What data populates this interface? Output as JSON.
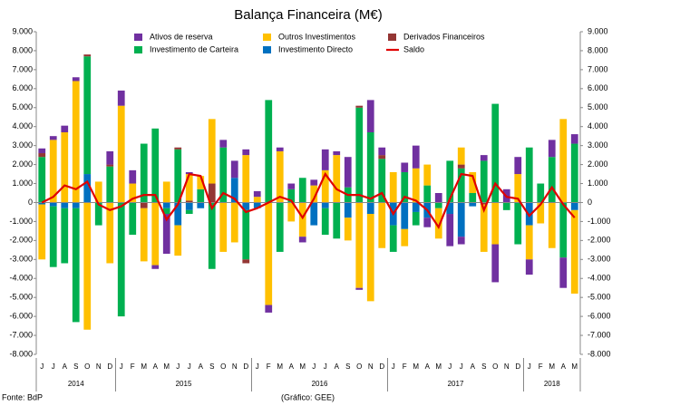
{
  "chart_data": {
    "type": "bar",
    "title": "Balança Financeira (M€)",
    "source": "Fonte: BdP",
    "credit": "(Gráfico: GEE)",
    "categories": [
      "J",
      "J",
      "A",
      "S",
      "O",
      "N",
      "D",
      "J",
      "F",
      "M",
      "A",
      "M",
      "J",
      "J",
      "A",
      "S",
      "O",
      "N",
      "D",
      "J",
      "F",
      "M",
      "A",
      "M",
      "J",
      "J",
      "A",
      "S",
      "O",
      "N",
      "D",
      "J",
      "F",
      "M",
      "A",
      "M",
      "J",
      "J",
      "A",
      "S",
      "O",
      "N",
      "D",
      "J",
      "F",
      "M",
      "A",
      "M"
    ],
    "years": [
      {
        "label": "2014",
        "months": 7
      },
      {
        "label": "2015",
        "months": 12
      },
      {
        "label": "2016",
        "months": 12
      },
      {
        "label": "2017",
        "months": 12
      },
      {
        "label": "2018",
        "months": 5
      }
    ],
    "ylim": [
      -8000,
      9000
    ],
    "yticks": [
      {
        "value": -8000,
        "label": "-8.000"
      },
      {
        "value": -7000,
        "label": "-7.000"
      },
      {
        "value": -6000,
        "label": "-6.000"
      },
      {
        "value": -5000,
        "label": "-5.000"
      },
      {
        "value": -4000,
        "label": "-4.000"
      },
      {
        "value": -3000,
        "label": "-3.000"
      },
      {
        "value": -2000,
        "label": "-2.000"
      },
      {
        "value": -1000,
        "label": "-1.000"
      },
      0,
      {
        "value": 1000,
        "label": "1.000"
      },
      {
        "value": 2000,
        "label": "2.000"
      },
      {
        "value": 3000,
        "label": "3.000"
      },
      {
        "value": 4000,
        "label": "4.000"
      },
      {
        "value": 5000,
        "label": "5.000"
      },
      {
        "value": 6000,
        "label": "6.000"
      },
      {
        "value": 7000,
        "label": "7.000"
      },
      {
        "value": 8000,
        "label": "8.000"
      },
      {
        "value": 9000,
        "label": "9.000"
      }
    ],
    "y2lim": [
      -8000,
      9000
    ],
    "y2ticks": [
      {
        "value": -8000,
        "label": "-8.000"
      },
      {
        "value": -7000,
        "label": "-7.000"
      },
      {
        "value": -6000,
        "label": "-6.000"
      },
      {
        "value": -5000,
        "label": "-5.000"
      },
      {
        "value": -4000,
        "label": "-4.000"
      },
      {
        "value": -3000,
        "label": "-3.000"
      },
      {
        "value": -2000,
        "label": "-2.000"
      },
      {
        "value": -1000,
        "label": "-1.000"
      },
      0,
      {
        "value": 1000,
        "label": "1.000"
      },
      {
        "value": 2000,
        "label": "2.000"
      },
      {
        "value": 3000,
        "label": "3.000"
      },
      {
        "value": 4000,
        "label": "4.000"
      },
      {
        "value": 5000,
        "label": "5.000"
      },
      {
        "value": 6000,
        "label": "6.000"
      },
      {
        "value": 7000,
        "label": "7.000"
      },
      {
        "value": 8000,
        "label": "8.000"
      },
      {
        "value": 9000,
        "label": "9.000"
      }
    ],
    "series": [
      {
        "name": "Ativos de reserva",
        "color": "#7030a0",
        "values": [
          250,
          200,
          350,
          200,
          0,
          0,
          700,
          800,
          700,
          0,
          -200,
          -2100,
          0,
          100,
          0,
          0,
          400,
          900,
          300,
          300,
          -400,
          200,
          300,
          -300,
          300,
          1100,
          200,
          1600,
          -100,
          1700,
          400,
          0,
          500,
          1200,
          -500,
          500,
          -1700,
          -400,
          0,
          300,
          -2000,
          700,
          900,
          -800,
          0,
          900,
          -1600,
          500
        ]
      },
      {
        "name": "Outros Investimentos",
        "color": "#ffc000",
        "values": [
          -2900,
          3300,
          3700,
          6400,
          -6700,
          1100,
          -3200,
          5100,
          1000,
          -2800,
          -3300,
          1100,
          -1600,
          1400,
          700,
          3400,
          -2600,
          -2100,
          2500,
          300,
          -5400,
          2700,
          -1000,
          -1800,
          900,
          1700,
          2500,
          -1200,
          -4500,
          -4600,
          -2400,
          1600,
          -900,
          1800,
          1100,
          -1600,
          0,
          900,
          1100,
          -2500,
          -2200,
          0,
          1500,
          -1800,
          -1100,
          -2400,
          4400,
          -4400
        ]
      },
      {
        "name": "Derivados Financeiros",
        "color": "#943634",
        "values": [
          200,
          0,
          0,
          0,
          100,
          0,
          100,
          0,
          0,
          -300,
          0,
          0,
          100,
          100,
          0,
          1000,
          0,
          0,
          -200,
          0,
          0,
          0,
          0,
          0,
          0,
          0,
          0,
          0,
          100,
          0,
          200,
          0,
          0,
          0,
          0,
          0,
          0,
          200,
          0,
          -100,
          0,
          0,
          0,
          0,
          0,
          0,
          0,
          0
        ]
      },
      {
        "name": "Investimento de Carteira",
        "color": "#00b050",
        "values": [
          2400,
          -3200,
          -2900,
          -6000,
          6200,
          -1200,
          1900,
          -6000,
          -1700,
          3100,
          3900,
          -300,
          2800,
          -200,
          700,
          -3500,
          2900,
          0,
          -2600,
          0,
          5400,
          -2600,
          700,
          1300,
          0,
          -1400,
          -1900,
          800,
          5000,
          3700,
          2300,
          -1400,
          1600,
          -700,
          900,
          -300,
          2200,
          1800,
          500,
          2200,
          5200,
          -400,
          -2200,
          2900,
          1000,
          2400,
          -2900,
          3100
        ]
      },
      {
        "name": "Investimento Directo",
        "color": "#0070c0",
        "values": [
          -100,
          -200,
          -300,
          -300,
          1500,
          0,
          0,
          0,
          0,
          0,
          0,
          -300,
          -1200,
          -400,
          -300,
          0,
          0,
          1300,
          -400,
          -300,
          0,
          0,
          0,
          0,
          -1200,
          -300,
          0,
          -800,
          0,
          -600,
          0,
          -1200,
          -1400,
          -500,
          -800,
          0,
          -600,
          -1800,
          -200,
          0,
          0,
          0,
          0,
          -1200,
          0,
          0,
          0,
          -400
        ]
      },
      {
        "name": "Saldo",
        "color": "#e00000",
        "type": "line",
        "values": [
          0,
          300,
          900,
          700,
          1100,
          -100,
          -400,
          -200,
          200,
          400,
          400,
          -900,
          -100,
          1500,
          1400,
          -300,
          500,
          200,
          -500,
          -300,
          0,
          300,
          100,
          -800,
          200,
          1500,
          700,
          400,
          400,
          200,
          500,
          -600,
          300,
          100,
          -400,
          -1300,
          200,
          1500,
          1400,
          -400,
          1000,
          300,
          200,
          -700,
          -100,
          800,
          -100,
          -800
        ]
      }
    ]
  }
}
